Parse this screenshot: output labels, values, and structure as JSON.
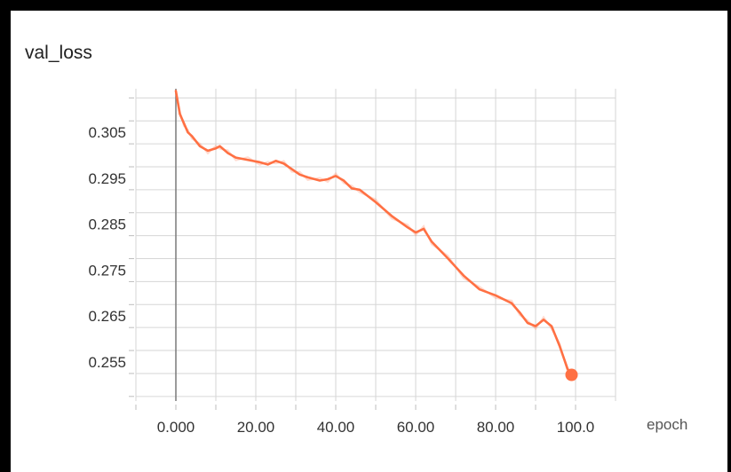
{
  "chart_data": {
    "type": "line",
    "title": "val_loss",
    "xlabel": "epoch",
    "ylabel": "",
    "xlim": [
      -10,
      110
    ],
    "ylim": [
      0.2465,
      0.3145
    ],
    "x_ticks": [
      "0.000",
      "20.00",
      "40.00",
      "60.00",
      "80.00",
      "100.0"
    ],
    "x_tick_values": [
      0,
      20,
      40,
      60,
      80,
      100
    ],
    "y_ticks": [
      "0.305",
      "0.295",
      "0.285",
      "0.275",
      "0.265",
      "0.255"
    ],
    "y_tick_values": [
      0.305,
      0.295,
      0.285,
      0.275,
      0.265,
      0.255
    ],
    "grid": true,
    "series": [
      {
        "color": "#ff7043",
        "x": [
          0,
          1,
          2,
          3,
          4,
          6,
          8,
          10,
          11,
          13,
          15,
          18,
          21,
          23,
          25,
          27,
          29,
          31,
          33,
          36,
          38,
          40,
          42,
          44,
          46,
          50,
          54,
          58,
          60,
          62,
          64,
          68,
          72,
          76,
          80,
          84,
          86,
          88,
          90,
          92,
          94,
          96,
          98,
          99
        ],
        "y": [
          0.314,
          0.309,
          0.307,
          0.305,
          0.3042,
          0.302,
          0.301,
          0.3015,
          0.302,
          0.3005,
          0.2995,
          0.299,
          0.2985,
          0.298,
          0.2988,
          0.2982,
          0.297,
          0.2958,
          0.2952,
          0.2945,
          0.2948,
          0.2955,
          0.2945,
          0.2928,
          0.2925,
          0.2898,
          0.2868,
          0.2843,
          0.2832,
          0.284,
          0.2812,
          0.2776,
          0.2738,
          0.2708,
          0.2695,
          0.2678,
          0.2658,
          0.2635,
          0.2628,
          0.2642,
          0.2628,
          0.2585,
          0.2535,
          0.2522
        ]
      }
    ]
  }
}
